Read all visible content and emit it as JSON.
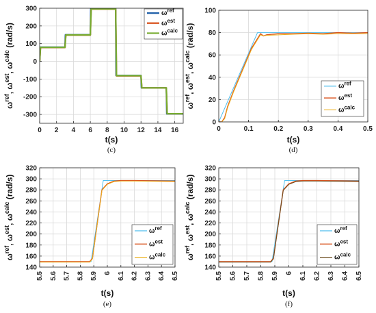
{
  "chart_data": [
    {
      "panel_label": "(c)",
      "type": "line",
      "xlabel": "t(s)",
      "ylabel_parts": [
        "ω",
        "ref",
        ", ω",
        "est",
        ", ω",
        "calc",
        " (rad/s)"
      ],
      "xlim": [
        0,
        17
      ],
      "ylim": [
        -350,
        300
      ],
      "xticks": [
        0,
        2,
        4,
        6,
        8,
        10,
        12,
        14,
        16
      ],
      "yticks": [
        -300,
        -200,
        -100,
        0,
        100,
        200,
        300
      ],
      "xtick_labels": [
        "0",
        "2",
        "4",
        "6",
        "8",
        "10",
        "12",
        "14",
        "16"
      ],
      "ytick_labels": [
        "-300",
        "-200",
        "-100",
        "0",
        "100",
        "200",
        "300"
      ],
      "grid": true,
      "legend_position": "top-right",
      "series": [
        {
          "name": "ω^ref",
          "legend_base": "ω",
          "legend_sup": "ref",
          "color": "#1f5fa8",
          "width": 2.2,
          "x": [
            0,
            0.05,
            3,
            3.05,
            6,
            6.05,
            9,
            9.05,
            12,
            12.05,
            15,
            15.05,
            17
          ],
          "y": [
            0,
            80,
            80,
            150,
            150,
            297,
            297,
            -80,
            -80,
            -150,
            -150,
            -297,
            -297
          ]
        },
        {
          "name": "ω^est",
          "legend_base": "ω",
          "legend_sup": "est",
          "color": "#d9531e",
          "width": 2.2,
          "x": [
            0,
            0.1,
            3,
            3.1,
            6,
            6.1,
            9,
            9.1,
            12,
            12.1,
            15,
            15.1,
            17
          ],
          "y": [
            0,
            78,
            78,
            148,
            148,
            295,
            295,
            -82,
            -82,
            -150,
            -150,
            -296,
            -296
          ]
        },
        {
          "name": "ω^calc",
          "legend_base": "ω",
          "legend_sup": "calc",
          "color": "#77ac30",
          "width": 2.2,
          "x": [
            0,
            0.1,
            3,
            3.1,
            6,
            6.1,
            9,
            9.1,
            12,
            12.1,
            15,
            15.1,
            17
          ],
          "y": [
            0,
            79,
            79,
            149,
            149,
            296,
            296,
            -81,
            -81,
            -150,
            -150,
            -296,
            -296
          ]
        }
      ]
    },
    {
      "panel_label": "(d)",
      "type": "line",
      "xlabel": "t(s)",
      "ylabel_parts": [
        "ω",
        "ref",
        ", ω",
        "est",
        ", ω",
        "calc",
        " (rad/s)"
      ],
      "xlim": [
        0,
        0.5
      ],
      "ylim": [
        0,
        100
      ],
      "xticks": [
        0,
        0.1,
        0.2,
        0.3,
        0.4,
        0.5
      ],
      "yticks": [
        0,
        20,
        40,
        60,
        80,
        100
      ],
      "xtick_labels": [
        "0",
        "0.1",
        "0.2",
        "0.3",
        "0.4",
        "0.5"
      ],
      "ytick_labels": [
        "0",
        "20",
        "40",
        "60",
        "80",
        "100"
      ],
      "grid": true,
      "legend_position": "bottom-right",
      "series": [
        {
          "name": "ω^ref",
          "legend_base": "ω",
          "legend_sup": "ref",
          "color": "#4dbeee",
          "width": 1,
          "x": [
            0,
            0.13,
            0.5
          ],
          "y": [
            0,
            80,
            80
          ]
        },
        {
          "name": "ω^est",
          "legend_base": "ω",
          "legend_sup": "est",
          "color": "#d9531e",
          "width": 1.4,
          "x": [
            0,
            0.01,
            0.02,
            0.03,
            0.05,
            0.08,
            0.11,
            0.14,
            0.15,
            0.16,
            0.2,
            0.25,
            0.3,
            0.35,
            0.4,
            0.45,
            0.5
          ],
          "y": [
            0,
            0,
            4,
            14,
            28,
            47,
            66,
            79,
            77,
            78,
            79,
            79,
            79.5,
            79,
            80,
            79.5,
            80
          ]
        },
        {
          "name": "ω^calc",
          "legend_base": "ω",
          "legend_sup": "calc",
          "color": "#edb120",
          "width": 1,
          "x": [
            0,
            0.01,
            0.02,
            0.03,
            0.05,
            0.08,
            0.11,
            0.14,
            0.15,
            0.16,
            0.2,
            0.25,
            0.3,
            0.35,
            0.4,
            0.45,
            0.5
          ],
          "y": [
            0,
            0,
            3,
            13,
            27,
            46,
            65,
            78,
            77,
            77.5,
            78,
            78.5,
            79,
            78.5,
            79,
            79,
            79
          ]
        }
      ]
    },
    {
      "panel_label": "(e)",
      "type": "line",
      "xlabel": "t(s)",
      "ylabel_parts": [
        "ω",
        "ref",
        ", ω",
        "est",
        ", ω",
        "calc",
        " (rad/s)"
      ],
      "xlim": [
        5.5,
        6.5
      ],
      "ylim": [
        140,
        320
      ],
      "xticks": [
        5.5,
        5.6,
        5.7,
        5.8,
        5.9,
        6,
        6.1,
        6.2,
        6.3,
        6.4,
        6.5
      ],
      "yticks": [
        140,
        160,
        180,
        200,
        220,
        240,
        260,
        280,
        300,
        320
      ],
      "xtick_labels": [
        "5.5",
        "5.6",
        "5.7",
        "5.8",
        "5.9",
        "6",
        "6.1",
        "6.2",
        "6.3",
        "6.4",
        "6.5"
      ],
      "ytick_labels": [
        "140",
        "160",
        "180",
        "200",
        "220",
        "240",
        "260",
        "280",
        "300",
        "320"
      ],
      "rotate_xticks": true,
      "grid": true,
      "legend_position": "bottom-right",
      "series": [
        {
          "name": "ω^ref",
          "legend_base": "ω",
          "legend_sup": "ref",
          "color": "#4dbeee",
          "width": 1,
          "x": [
            5.5,
            5.88,
            5.97,
            6.5
          ],
          "y": [
            150,
            150,
            297,
            297
          ]
        },
        {
          "name": "ω^est",
          "legend_base": "ω",
          "legend_sup": "est",
          "color": "#d9531e",
          "width": 1.4,
          "x": [
            5.5,
            5.87,
            5.89,
            5.96,
            6.0,
            6.05,
            6.1,
            6.2,
            6.5
          ],
          "y": [
            150,
            150,
            156,
            280,
            291,
            296,
            297,
            297,
            296
          ]
        },
        {
          "name": "ω^calc",
          "legend_base": "ω",
          "legend_sup": "calc",
          "color": "#edb120",
          "width": 1,
          "x": [
            5.5,
            5.87,
            5.89,
            5.96,
            6.0,
            6.05,
            6.1,
            6.2,
            6.5
          ],
          "y": [
            149,
            149,
            155,
            279,
            290,
            295,
            296,
            296,
            295
          ]
        }
      ]
    },
    {
      "panel_label": "(f)",
      "type": "line",
      "xlabel": "t(s)",
      "ylabel_parts": [
        "ω",
        "ref",
        ", ω",
        "est",
        ", ω",
        "calc",
        " (rad/s)"
      ],
      "xlim": [
        5.5,
        6.5
      ],
      "ylim": [
        140,
        320
      ],
      "xticks": [
        5.5,
        5.6,
        5.7,
        5.8,
        5.9,
        6,
        6.1,
        6.2,
        6.3,
        6.4,
        6.5
      ],
      "yticks": [
        140,
        160,
        180,
        200,
        220,
        240,
        260,
        280,
        300,
        320
      ],
      "xtick_labels": [
        "5.5",
        "5.6",
        "5.7",
        "5.8",
        "5.9",
        "6",
        "6.1",
        "6.2",
        "6.3",
        "6.4",
        "6.5"
      ],
      "ytick_labels": [
        "140",
        "160",
        "180",
        "200",
        "220",
        "240",
        "260",
        "280",
        "300",
        "320"
      ],
      "rotate_xticks": true,
      "grid": true,
      "legend_position": "bottom-right",
      "series": [
        {
          "name": "ω^ref",
          "legend_base": "ω",
          "legend_sup": "ref",
          "color": "#4dbeee",
          "width": 1,
          "x": [
            5.5,
            5.88,
            5.97,
            6.5
          ],
          "y": [
            150,
            150,
            297,
            297
          ]
        },
        {
          "name": "ω^est",
          "legend_base": "ω",
          "legend_sup": "est",
          "color": "#d9531e",
          "width": 1.4,
          "x": [
            5.5,
            5.87,
            5.89,
            5.96,
            6.0,
            6.05,
            6.1,
            6.2,
            6.5
          ],
          "y": [
            150,
            150,
            156,
            280,
            291,
            296,
            297,
            297,
            296
          ]
        },
        {
          "name": "ω^calc",
          "legend_base": "ω",
          "legend_sup": "calc",
          "color": "#6b4c1e",
          "width": 1,
          "x": [
            5.5,
            5.87,
            5.89,
            5.96,
            6.0,
            6.05,
            6.1,
            6.2,
            6.5
          ],
          "y": [
            149,
            149,
            155,
            279,
            290,
            295,
            296,
            296,
            295
          ]
        }
      ]
    }
  ]
}
